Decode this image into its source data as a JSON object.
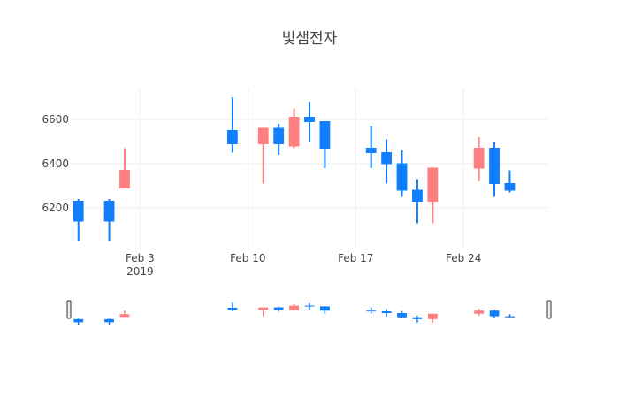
{
  "chart_data": {
    "type": "candlestick",
    "title": "빛샘전자",
    "xlabel": "",
    "ylabel": "",
    "ylim": [
      6020,
      6740
    ],
    "xrange": [
      "2019-01-29T12:00",
      "2019-03-01T12:00"
    ],
    "y_ticks": [
      6200,
      6400,
      6600
    ],
    "x_ticks": [
      {
        "date": "2019-02-03",
        "label": "Feb 3",
        "sublabel": "2019"
      },
      {
        "date": "2019-02-10",
        "label": "Feb 10",
        "sublabel": ""
      },
      {
        "date": "2019-02-17",
        "label": "Feb 17",
        "sublabel": ""
      },
      {
        "date": "2019-02-24",
        "label": "Feb 24",
        "sublabel": ""
      }
    ],
    "increasing_color": "#ff7f7f",
    "decreasing_color": "#0f7fff",
    "grid": true,
    "range_slider": true,
    "legend": "none",
    "candles": [
      {
        "date": "2019-01-30",
        "open": 6230,
        "high": 6240,
        "low": 6050,
        "close": 6140
      },
      {
        "date": "2019-02-01",
        "open": 6230,
        "high": 6240,
        "low": 6050,
        "close": 6140
      },
      {
        "date": "2019-02-02",
        "open": 6290,
        "high": 6470,
        "low": 6290,
        "close": 6370
      },
      {
        "date": "2019-02-09",
        "open": 6550,
        "high": 6700,
        "low": 6450,
        "close": 6490
      },
      {
        "date": "2019-02-11",
        "open": 6490,
        "high": 6560,
        "low": 6310,
        "close": 6560
      },
      {
        "date": "2019-02-12",
        "open": 6560,
        "high": 6580,
        "low": 6440,
        "close": 6490
      },
      {
        "date": "2019-02-13",
        "open": 6480,
        "high": 6650,
        "low": 6470,
        "close": 6610
      },
      {
        "date": "2019-02-14",
        "open": 6610,
        "high": 6680,
        "low": 6500,
        "close": 6590
      },
      {
        "date": "2019-02-15",
        "open": 6590,
        "high": 6590,
        "low": 6380,
        "close": 6470
      },
      {
        "date": "2019-02-18",
        "open": 6470,
        "high": 6570,
        "low": 6380,
        "close": 6450
      },
      {
        "date": "2019-02-19",
        "open": 6450,
        "high": 6510,
        "low": 6310,
        "close": 6400
      },
      {
        "date": "2019-02-20",
        "open": 6400,
        "high": 6460,
        "low": 6250,
        "close": 6280
      },
      {
        "date": "2019-02-21",
        "open": 6280,
        "high": 6330,
        "low": 6130,
        "close": 6230
      },
      {
        "date": "2019-02-22",
        "open": 6230,
        "high": 6380,
        "low": 6130,
        "close": 6380
      },
      {
        "date": "2019-02-25",
        "open": 6380,
        "high": 6520,
        "low": 6320,
        "close": 6470
      },
      {
        "date": "2019-02-26",
        "open": 6470,
        "high": 6500,
        "low": 6250,
        "close": 6310
      },
      {
        "date": "2019-02-27",
        "open": 6310,
        "high": 6370,
        "low": 6270,
        "close": 6280
      }
    ]
  }
}
